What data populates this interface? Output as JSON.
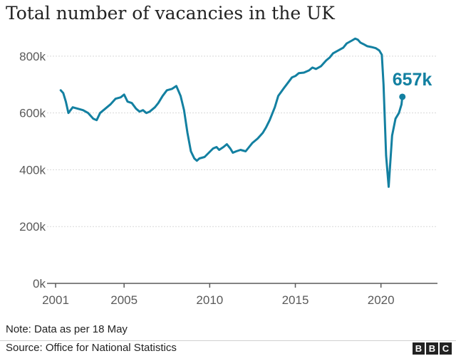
{
  "chart_data": {
    "type": "line",
    "title": "Total number of vacancies in the UK",
    "xlabel": "",
    "ylabel": "",
    "x_ticks": [
      2001,
      2005,
      2010,
      2015,
      2020
    ],
    "x_tick_labels": [
      "2001",
      "2005",
      "2010",
      "2015",
      "2020"
    ],
    "y_ticks": [
      0,
      200000,
      400000,
      600000,
      800000
    ],
    "y_tick_labels": [
      "0k",
      "200k",
      "400k",
      "600k",
      "800k"
    ],
    "xlim": [
      2000.5,
      2023.3
    ],
    "ylim": [
      0,
      880000
    ],
    "grid": true,
    "legend": "none",
    "color": "#1380A1",
    "end_label": "657k",
    "series": [
      {
        "x": [
          2001.3,
          2001.45,
          2001.6,
          2001.75,
          2002.0,
          2002.3,
          2002.6,
          2002.9,
          2003.2,
          2003.4,
          2003.6,
          2003.9,
          2004.2,
          2004.5,
          2004.8,
          2005.0,
          2005.2,
          2005.45,
          2005.7,
          2005.9,
          2006.1,
          2006.3,
          2006.5,
          2006.8,
          2007.0,
          2007.25,
          2007.5,
          2007.8,
          2008.05,
          2008.3,
          2008.5,
          2008.7,
          2008.9,
          2009.1,
          2009.25,
          2009.4,
          2009.7,
          2009.95,
          2010.2,
          2010.4,
          2010.55,
          2010.8,
          2011.0,
          2011.2,
          2011.35,
          2011.55,
          2011.8,
          2012.1,
          2012.3,
          2012.5,
          2012.8,
          2013.1,
          2013.3,
          2013.5,
          2013.8,
          2014.0,
          2014.3,
          2014.55,
          2014.8,
          2015.0,
          2015.2,
          2015.5,
          2015.8,
          2016.0,
          2016.2,
          2016.5,
          2016.8,
          2017.0,
          2017.2,
          2017.5,
          2017.8,
          2018.0,
          2018.3,
          2018.5,
          2018.65,
          2018.8,
          2019.0,
          2019.2,
          2019.45,
          2019.7,
          2019.9,
          2020.05,
          2020.15,
          2020.3,
          2020.45,
          2020.65,
          2020.85,
          2021.05,
          2021.2,
          2021.25
        ],
        "y": [
          680000,
          670000,
          640000,
          600000,
          620000,
          615000,
          610000,
          600000,
          580000,
          575000,
          600000,
          615000,
          630000,
          650000,
          655000,
          665000,
          640000,
          635000,
          615000,
          605000,
          610000,
          600000,
          605000,
          620000,
          635000,
          660000,
          680000,
          685000,
          695000,
          660000,
          610000,
          530000,
          465000,
          440000,
          432000,
          440000,
          445000,
          460000,
          475000,
          480000,
          470000,
          480000,
          490000,
          475000,
          460000,
          465000,
          470000,
          465000,
          480000,
          495000,
          510000,
          530000,
          550000,
          575000,
          620000,
          660000,
          685000,
          705000,
          725000,
          730000,
          740000,
          742000,
          750000,
          760000,
          755000,
          765000,
          785000,
          795000,
          810000,
          820000,
          830000,
          845000,
          855000,
          862000,
          858000,
          848000,
          842000,
          835000,
          832000,
          828000,
          820000,
          805000,
          700000,
          450000,
          340000,
          520000,
          580000,
          600000,
          630000,
          657000
        ]
      }
    ]
  },
  "footer": {
    "note": "Note: Data as per 18 May",
    "source": "Source: Office for National Statistics",
    "logo_letters": [
      "B",
      "B",
      "C"
    ]
  }
}
